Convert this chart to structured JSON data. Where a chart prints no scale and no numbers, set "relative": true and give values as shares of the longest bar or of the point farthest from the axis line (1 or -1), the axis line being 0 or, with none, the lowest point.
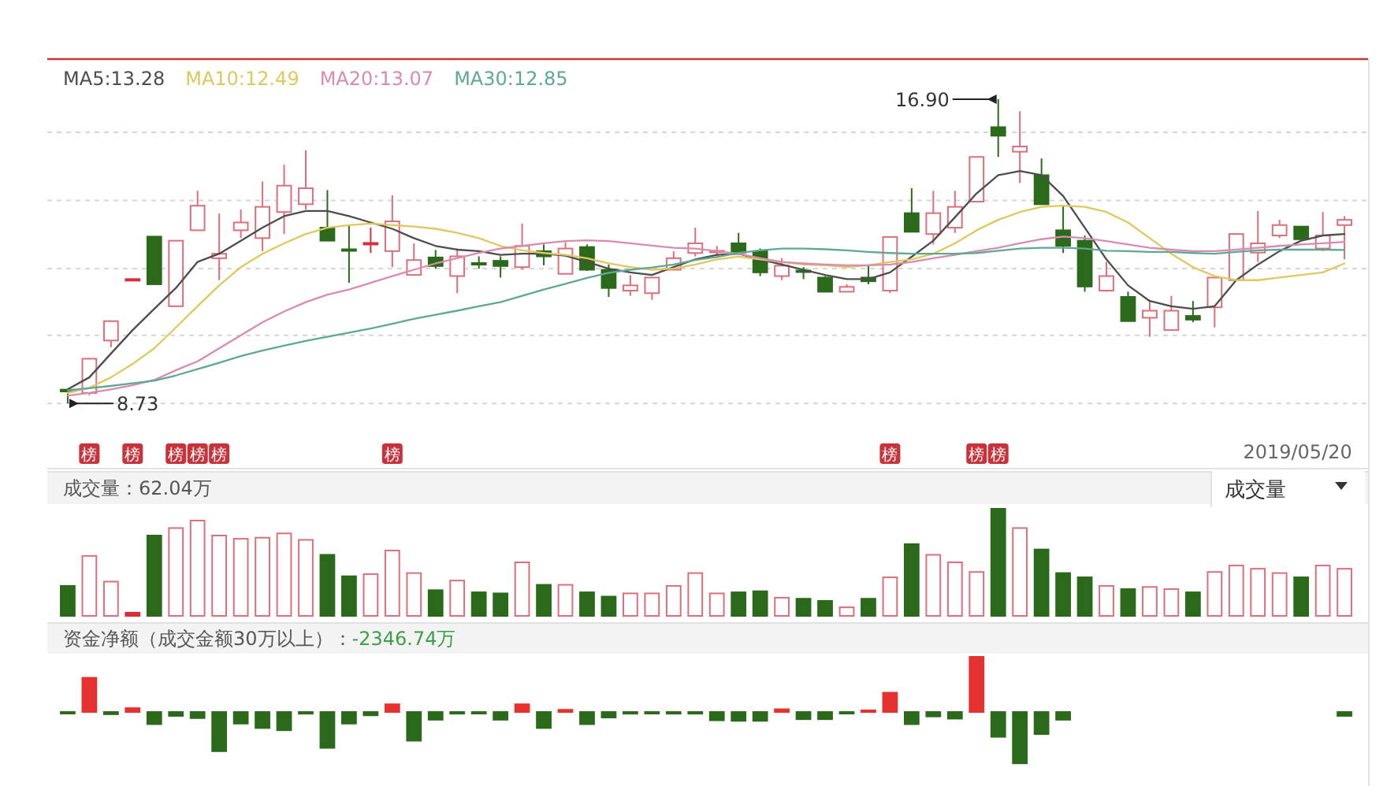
{
  "chart_data": [
    {
      "type": "candlestick",
      "legend": "top left",
      "grid": "y",
      "tick_labels": "x",
      "ylim": [
        7.0,
        18.0
      ],
      "yticks": [
        {
          "value": 8.73,
          "label": null
        },
        {
          "value": 10.56,
          "label": null
        },
        {
          "value": 12.35,
          "label": null
        },
        {
          "value": 14.18,
          "label": null
        },
        {
          "value": 16.01,
          "label": null
        }
      ],
      "categories": [
        null,
        null,
        null,
        null,
        null,
        null,
        null,
        null,
        null,
        null,
        null,
        null,
        null,
        null,
        null,
        null,
        null,
        null,
        null,
        null,
        null,
        null,
        null,
        null,
        null,
        null,
        null,
        null,
        null,
        null,
        null,
        null,
        null,
        null,
        null,
        null,
        null,
        null,
        null,
        null,
        null,
        null,
        null,
        null,
        null,
        null,
        null,
        null,
        null,
        null,
        null,
        null,
        null,
        null,
        null,
        null,
        null,
        null,
        null,
        null
      ],
      "ohlc": [
        [
          9.1,
          9.12,
          8.73,
          9.05
        ],
        [
          9.01,
          9.95,
          8.95,
          9.93
        ],
        [
          10.42,
          10.96,
          10.24,
          10.94
        ],
        [
          12.07,
          12.07,
          12.07,
          12.07
        ],
        [
          13.21,
          13.21,
          11.93,
          11.93
        ],
        [
          11.34,
          13.1,
          11.34,
          13.1
        ],
        [
          13.38,
          14.44,
          13.38,
          14.04
        ],
        [
          12.63,
          13.83,
          12.04,
          12.75
        ],
        [
          13.38,
          13.94,
          13.17,
          13.59
        ],
        [
          13.17,
          14.69,
          12.82,
          14.01
        ],
        [
          13.87,
          15.14,
          13.28,
          14.58
        ],
        [
          14.08,
          15.53,
          13.94,
          14.51
        ],
        [
          13.45,
          14.46,
          13.1,
          13.1
        ],
        [
          12.87,
          13.52,
          11.97,
          12.85
        ],
        [
          13.02,
          13.45,
          12.77,
          13.04
        ],
        [
          12.82,
          14.32,
          12.39,
          13.62
        ],
        [
          12.18,
          13.03,
          12.18,
          12.58
        ],
        [
          12.65,
          12.85,
          12.35,
          12.42
        ],
        [
          12.15,
          12.89,
          11.69,
          12.68
        ],
        [
          12.5,
          12.68,
          12.35,
          12.48
        ],
        [
          12.56,
          12.68,
          12.11,
          12.42
        ],
        [
          12.39,
          13.56,
          12.32,
          12.96
        ],
        [
          12.82,
          13.0,
          12.44,
          12.68
        ],
        [
          12.21,
          13.06,
          12.21,
          12.89
        ],
        [
          12.93,
          13.0,
          12.29,
          12.32
        ],
        [
          12.32,
          12.46,
          11.59,
          11.83
        ],
        [
          11.76,
          12.18,
          11.62,
          11.9
        ],
        [
          11.69,
          12.11,
          11.51,
          12.11
        ],
        [
          12.32,
          12.82,
          12.32,
          12.63
        ],
        [
          12.77,
          13.45,
          12.68,
          13.03
        ],
        [
          12.81,
          12.96,
          12.68,
          12.83
        ],
        [
          13.03,
          13.31,
          12.78,
          12.78
        ],
        [
          12.82,
          12.89,
          12.15,
          12.25
        ],
        [
          12.15,
          12.63,
          12.04,
          12.43
        ],
        [
          12.3,
          12.39,
          12.07,
          12.27
        ],
        [
          12.11,
          12.15,
          11.73,
          11.73
        ],
        [
          11.73,
          11.93,
          11.73,
          11.86
        ],
        [
          12.11,
          12.46,
          11.93,
          12.01
        ],
        [
          11.76,
          13.2,
          11.69,
          13.2
        ],
        [
          13.84,
          14.51,
          13.34,
          13.34
        ],
        [
          13.28,
          14.44,
          13.0,
          13.84
        ],
        [
          13.45,
          14.44,
          13.31,
          14.01
        ],
        [
          14.15,
          15.35,
          14.15,
          15.35
        ],
        [
          16.15,
          16.9,
          15.35,
          15.92
        ],
        [
          15.49,
          16.58,
          14.65,
          15.63
        ],
        [
          14.86,
          15.31,
          14.08,
          14.08
        ],
        [
          13.38,
          14.04,
          12.77,
          12.96
        ],
        [
          13.1,
          13.24,
          11.73,
          11.87
        ],
        [
          11.76,
          12.53,
          11.73,
          12.15
        ],
        [
          11.59,
          11.73,
          10.94,
          10.94
        ],
        [
          11.03,
          11.51,
          10.52,
          11.22
        ],
        [
          10.7,
          11.62,
          10.7,
          11.22
        ],
        [
          11.08,
          11.48,
          10.91,
          10.98
        ],
        [
          11.31,
          12.11,
          10.77,
          12.11
        ],
        [
          12.04,
          13.28,
          12.04,
          13.28
        ],
        [
          12.78,
          13.9,
          12.53,
          13.03
        ],
        [
          13.24,
          13.66,
          13.17,
          13.52
        ],
        [
          13.48,
          13.48,
          13.14,
          13.14
        ],
        [
          12.89,
          13.87,
          12.82,
          13.24
        ],
        [
          13.52,
          13.76,
          12.6,
          13.66
        ]
      ],
      "colors": [
        "#2b6a1b",
        "#dc6f7c",
        "#dc6f7c",
        "#d8303a",
        "#2b6a1b",
        "#dc6f7c",
        "#dc6f7c",
        "#dc6f7c",
        "#dc6f7c",
        "#dc6f7c",
        "#dc6f7c",
        "#dc6f7c",
        "#2b6a1b",
        "#2b6a1b",
        "#d8303a",
        "#dc6f7c",
        "#dc6f7c",
        "#2b6a1b",
        "#dc6f7c",
        "#2b6a1b",
        "#2b6a1b",
        "#dc6f7c",
        "#2b6a1b",
        "#dc6f7c",
        "#2b6a1b",
        "#2b6a1b",
        "#dc6f7c",
        "#dc6f7c",
        "#dc6f7c",
        "#dc6f7c",
        "#dc6f7c",
        "#2b6a1b",
        "#2b6a1b",
        "#dc6f7c",
        "#2b6a1b",
        "#2b6a1b",
        "#dc6f7c",
        "#2b6a1b",
        "#dc6f7c",
        "#2b6a1b",
        "#dc6f7c",
        "#dc6f7c",
        "#dc6f7c",
        "#2b6a1b",
        "#dc6f7c",
        "#2b6a1b",
        "#2b6a1b",
        "#2b6a1b",
        "#dc6f7c",
        "#2b6a1b",
        "#dc6f7c",
        "#dc6f7c",
        "#2b6a1b",
        "#dc6f7c",
        "#dc6f7c",
        "#dc6f7c",
        "#dc6f7c",
        "#2b6a1b",
        "#dc6f7c",
        "#dc6f7c"
      ],
      "series": [
        {
          "name": "MA5:13.28",
          "type": "line",
          "color": "#4d4d4d",
          "values": [
            9.11,
            9.43,
            10.07,
            10.7,
            11.27,
            11.83,
            12.53,
            12.75,
            13.1,
            13.45,
            13.76,
            13.9,
            13.9,
            13.76,
            13.59,
            13.42,
            13.17,
            12.96,
            12.86,
            12.82,
            12.72,
            12.75,
            12.75,
            12.7,
            12.53,
            12.35,
            12.25,
            12.18,
            12.39,
            12.6,
            12.72,
            12.75,
            12.6,
            12.46,
            12.32,
            12.18,
            12.07,
            12.07,
            12.25,
            12.67,
            13.1,
            13.73,
            14.37,
            14.86,
            14.97,
            14.86,
            14.3,
            13.45,
            12.6,
            11.9,
            11.48,
            11.34,
            11.27,
            11.34,
            12.04,
            12.46,
            12.82,
            13.1,
            13.24,
            13.28
          ]
        },
        {
          "name": "MA10:12.49",
          "type": "line",
          "color": "#dfc85c",
          "values": [
            9.01,
            9.15,
            9.43,
            9.79,
            10.21,
            10.77,
            11.34,
            11.9,
            12.39,
            12.75,
            13.03,
            13.28,
            13.45,
            13.52,
            13.56,
            13.52,
            13.48,
            13.42,
            13.31,
            13.17,
            12.96,
            12.84,
            12.77,
            12.72,
            12.63,
            12.49,
            12.39,
            12.32,
            12.35,
            12.46,
            12.6,
            12.67,
            12.6,
            12.53,
            12.46,
            12.44,
            12.39,
            12.44,
            12.53,
            12.6,
            12.75,
            13.03,
            13.38,
            13.66,
            13.87,
            14.01,
            14.04,
            14.01,
            13.87,
            13.59,
            13.17,
            12.75,
            12.39,
            12.15,
            12.04,
            12.04,
            12.11,
            12.18,
            12.25,
            12.49
          ]
        },
        {
          "name": "MA20:13.07",
          "type": "line",
          "color": "#d98bb0",
          "values": [
            8.94,
            9.01,
            9.11,
            9.22,
            9.36,
            9.62,
            9.86,
            10.21,
            10.56,
            10.91,
            11.2,
            11.45,
            11.65,
            11.79,
            11.97,
            12.15,
            12.32,
            12.49,
            12.63,
            12.77,
            12.89,
            12.96,
            13.03,
            13.09,
            13.11,
            13.09,
            13.03,
            12.97,
            12.91,
            12.89,
            12.82,
            12.75,
            12.63,
            12.53,
            12.49,
            12.46,
            12.44,
            12.44,
            12.46,
            12.53,
            12.63,
            12.72,
            12.82,
            12.91,
            13.03,
            13.14,
            13.21,
            13.17,
            13.09,
            13.0,
            12.91,
            12.86,
            12.82,
            12.82,
            12.86,
            12.91,
            12.96,
            13.0,
            13.03,
            13.07
          ]
        },
        {
          "name": "MA30:12.85",
          "type": "line",
          "color": "#5ea894",
          "values": [
            9.08,
            9.14,
            9.2,
            9.27,
            9.34,
            9.48,
            9.65,
            9.82,
            10.0,
            10.15,
            10.28,
            10.41,
            10.52,
            10.63,
            10.74,
            10.87,
            11.0,
            11.11,
            11.22,
            11.34,
            11.45,
            11.62,
            11.79,
            11.94,
            12.1,
            12.24,
            12.32,
            12.38,
            12.46,
            12.58,
            12.66,
            12.77,
            12.84,
            12.89,
            12.89,
            12.87,
            12.84,
            12.8,
            12.77,
            12.75,
            12.75,
            12.75,
            12.77,
            12.83,
            12.89,
            12.91,
            12.91,
            12.89,
            12.83,
            12.82,
            12.8,
            12.8,
            12.77,
            12.75,
            12.8,
            12.84,
            12.86,
            12.86,
            12.86,
            12.85
          ]
        },
        {
          "type": "scatter",
          "marker": "square",
          "color": "#c8323a",
          "values": [
            null,
            7.38,
            null,
            7.38,
            null,
            7.38,
            7.38,
            7.38,
            null,
            null,
            null,
            null,
            null,
            null,
            null,
            7.38,
            null,
            null,
            null,
            null,
            null,
            null,
            null,
            null,
            null,
            null,
            null,
            null,
            null,
            null,
            null,
            null,
            null,
            null,
            null,
            null,
            null,
            null,
            7.38,
            null,
            null,
            null,
            7.38,
            7.38,
            null,
            null,
            null,
            null,
            null,
            null,
            null,
            null,
            null,
            null,
            null,
            null,
            null,
            null,
            null,
            null
          ],
          "value_labels": [
            null,
            "榜",
            null,
            "榜",
            null,
            "榜",
            "榜",
            "榜",
            null,
            null,
            null,
            null,
            null,
            null,
            null,
            "榜",
            null,
            null,
            null,
            null,
            null,
            null,
            null,
            null,
            null,
            null,
            null,
            null,
            null,
            null,
            null,
            null,
            null,
            null,
            null,
            null,
            null,
            null,
            "榜",
            null,
            null,
            null,
            "榜",
            "榜",
            null,
            null,
            null,
            null,
            null,
            null,
            null,
            null,
            null,
            null,
            null,
            null,
            null,
            null,
            null,
            null
          ]
        }
      ],
      "annotations": [
        "16.90",
        "8.73",
        "2019/05/20"
      ]
    },
    {
      "type": "bar",
      "relative": true,
      "title": "成交量：62.04万",
      "annotations": [
        "成交量"
      ],
      "categories": [
        null,
        null,
        null,
        null,
        null,
        null,
        null,
        null,
        null,
        null,
        null,
        null,
        null,
        null,
        null,
        null,
        null,
        null,
        null,
        null,
        null,
        null,
        null,
        null,
        null,
        null,
        null,
        null,
        null,
        null,
        null,
        null,
        null,
        null,
        null,
        null,
        null,
        null,
        null,
        null,
        null,
        null,
        null,
        null,
        null,
        null,
        null,
        null,
        null,
        null,
        null,
        null,
        null,
        null,
        null,
        null,
        null,
        null,
        null,
        null
      ],
      "values": [
        0.28,
        0.56,
        0.32,
        0.03,
        0.75,
        0.82,
        0.89,
        0.75,
        0.72,
        0.73,
        0.77,
        0.71,
        0.57,
        0.37,
        0.39,
        0.61,
        0.4,
        0.24,
        0.33,
        0.22,
        0.21,
        0.5,
        0.29,
        0.29,
        0.22,
        0.18,
        0.21,
        0.21,
        0.28,
        0.4,
        0.21,
        0.22,
        0.23,
        0.17,
        0.16,
        0.14,
        0.08,
        0.16,
        0.36,
        0.67,
        0.57,
        0.5,
        0.41,
        1,
        0.82,
        0.62,
        0.4,
        0.36,
        0.28,
        0.25,
        0.27,
        0.25,
        0.22,
        0.41,
        0.47,
        0.44,
        0.4,
        0.36,
        0.47,
        0.44
      ],
      "colors": [
        "#2b6a1b",
        "#dc6f7c",
        "#dc6f7c",
        "#d8303a",
        "#2b6a1b",
        "#dc6f7c",
        "#dc6f7c",
        "#dc6f7c",
        "#dc6f7c",
        "#dc6f7c",
        "#dc6f7c",
        "#dc6f7c",
        "#2b6a1b",
        "#2b6a1b",
        "#dc6f7c",
        "#dc6f7c",
        "#dc6f7c",
        "#2b6a1b",
        "#dc6f7c",
        "#2b6a1b",
        "#2b6a1b",
        "#dc6f7c",
        "#2b6a1b",
        "#dc6f7c",
        "#2b6a1b",
        "#2b6a1b",
        "#dc6f7c",
        "#dc6f7c",
        "#dc6f7c",
        "#dc6f7c",
        "#dc6f7c",
        "#2b6a1b",
        "#2b6a1b",
        "#dc6f7c",
        "#2b6a1b",
        "#2b6a1b",
        "#dc6f7c",
        "#2b6a1b",
        "#dc6f7c",
        "#2b6a1b",
        "#dc6f7c",
        "#dc6f7c",
        "#dc6f7c",
        "#2b6a1b",
        "#dc6f7c",
        "#2b6a1b",
        "#2b6a1b",
        "#2b6a1b",
        "#dc6f7c",
        "#2b6a1b",
        "#dc6f7c",
        "#dc6f7c",
        "#2b6a1b",
        "#dc6f7c",
        "#dc6f7c",
        "#dc6f7c",
        "#dc6f7c",
        "#2b6a1b",
        "#dc6f7c",
        "#dc6f7c"
      ]
    },
    {
      "type": "bar",
      "relative": true,
      "title": "资金净额（成交金额30万以上）：",
      "subtitle": "-2346.74万",
      "categories": [
        null,
        null,
        null,
        null,
        null,
        null,
        null,
        null,
        null,
        null,
        null,
        null,
        null,
        null,
        null,
        null,
        null,
        null,
        null,
        null,
        null,
        null,
        null,
        null,
        null,
        null,
        null,
        null,
        null,
        null,
        null,
        null,
        null,
        null,
        null,
        null,
        null,
        null,
        null,
        null,
        null,
        null,
        null,
        null,
        null,
        null,
        null,
        null,
        null,
        null,
        null,
        null,
        null,
        null,
        null,
        null,
        null,
        null,
        null,
        null
      ],
      "values": [
        -0.01,
        0.62,
        -0.04,
        0.07,
        -0.22,
        -0.07,
        -0.11,
        -0.71,
        -0.21,
        -0.29,
        -0.33,
        -0.03,
        -0.65,
        -0.21,
        -0.06,
        0.14,
        -0.52,
        -0.14,
        -0.03,
        -0.01,
        -0.14,
        0.14,
        -0.29,
        0.04,
        -0.22,
        -0.1,
        -0.03,
        -0.01,
        -0.03,
        -0.03,
        -0.15,
        -0.16,
        -0.16,
        0.05,
        -0.13,
        -0.13,
        -0.02,
        0.03,
        0.35,
        -0.22,
        -0.08,
        -0.12,
        1,
        -0.45,
        -0.93,
        -0.4,
        -0.14,
        null,
        null,
        null,
        null,
        null,
        null,
        null,
        null,
        null,
        null,
        null,
        null,
        -0.07
      ],
      "colors": [
        "#2b6a1b",
        "#e5312f",
        "#2b6a1b",
        "#e5312f",
        "#2b6a1b",
        "#2b6a1b",
        "#2b6a1b",
        "#2b6a1b",
        "#2b6a1b",
        "#2b6a1b",
        "#2b6a1b",
        "#2b6a1b",
        "#2b6a1b",
        "#2b6a1b",
        "#2b6a1b",
        "#e5312f",
        "#2b6a1b",
        "#2b6a1b",
        "#2b6a1b",
        "#2b6a1b",
        "#2b6a1b",
        "#e5312f",
        "#2b6a1b",
        "#e5312f",
        "#2b6a1b",
        "#2b6a1b",
        "#2b6a1b",
        "#2b6a1b",
        "#2b6a1b",
        "#2b6a1b",
        "#2b6a1b",
        "#2b6a1b",
        "#2b6a1b",
        "#e5312f",
        "#2b6a1b",
        "#2b6a1b",
        "#2b6a1b",
        "#e5312f",
        "#e5312f",
        "#2b6a1b",
        "#2b6a1b",
        "#2b6a1b",
        "#e5312f",
        "#2b6a1b",
        "#2b6a1b",
        "#2b6a1b",
        "#2b6a1b",
        null,
        null,
        null,
        null,
        null,
        null,
        null,
        null,
        null,
        null,
        null,
        null,
        "#2b6a1b"
      ]
    }
  ]
}
